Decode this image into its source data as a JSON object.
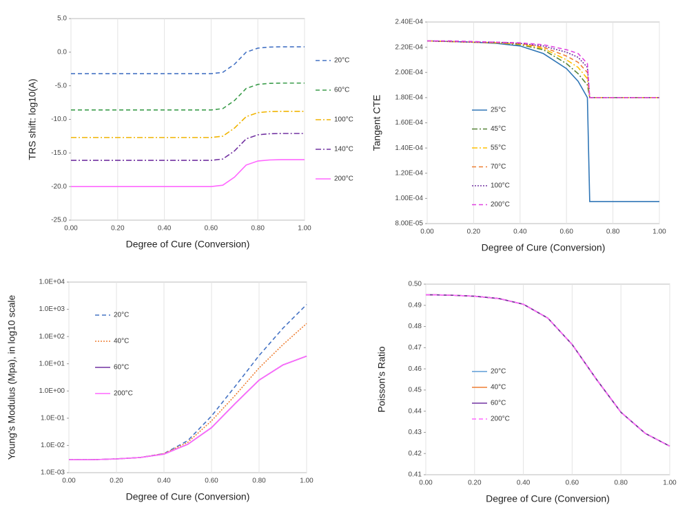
{
  "chart_data": [
    {
      "type": "line",
      "xlabel": "Degree of Cure (Conversion)",
      "ylabel": "TRS shift: log10(A)",
      "grid": "x",
      "legend": "right",
      "x": [
        0,
        0.05,
        0.1,
        0.15,
        0.2,
        0.25,
        0.3,
        0.35,
        0.4,
        0.45,
        0.5,
        0.55,
        0.6,
        0.65,
        0.7,
        0.75,
        0.8,
        0.85,
        0.9,
        0.95,
        1.0
      ],
      "xlim": [
        0,
        1
      ],
      "xticks": [
        {
          "value": 0,
          "label": "0.00"
        },
        {
          "value": 0.2,
          "label": "0.20"
        },
        {
          "value": 0.4,
          "label": "0.40"
        },
        {
          "value": 0.6,
          "label": "0.60"
        },
        {
          "value": 0.8,
          "label": "0.80"
        },
        {
          "value": 1,
          "label": "1.00"
        }
      ],
      "ylim": [
        -25,
        5
      ],
      "yticks": [
        {
          "value": 5,
          "label": "5.0"
        },
        {
          "value": 0,
          "label": "0.0"
        },
        {
          "value": -5,
          "label": "-5.0"
        },
        {
          "value": -10,
          "label": "-10.0"
        },
        {
          "value": -15,
          "label": "-15.0"
        },
        {
          "value": -20,
          "label": "-20.0"
        },
        {
          "value": -25,
          "label": "-25.0"
        }
      ],
      "series": [
        {
          "name": "20°C",
          "color": "#4472c4",
          "style": "dashed",
          "values": [
            -3.2,
            -3.2,
            -3.2,
            -3.2,
            -3.2,
            -3.2,
            -3.2,
            -3.2,
            -3.2,
            -3.2,
            -3.2,
            -3.2,
            -3.2,
            -3.0,
            -1.8,
            0.0,
            0.6,
            0.76,
            0.8,
            0.8,
            0.8
          ]
        },
        {
          "name": "60°C",
          "color": "#3a9c4a",
          "style": "dashed",
          "values": [
            -8.6,
            -8.6,
            -8.6,
            -8.6,
            -8.6,
            -8.6,
            -8.6,
            -8.6,
            -8.6,
            -8.6,
            -8.6,
            -8.6,
            -8.6,
            -8.4,
            -7.2,
            -5.4,
            -4.8,
            -4.64,
            -4.6,
            -4.6,
            -4.6
          ]
        },
        {
          "name": "100°C",
          "color": "#f0b400",
          "style": "dashdot",
          "values": [
            -12.7,
            -12.7,
            -12.7,
            -12.7,
            -12.7,
            -12.7,
            -12.7,
            -12.7,
            -12.7,
            -12.7,
            -12.7,
            -12.7,
            -12.7,
            -12.5,
            -11.3,
            -9.6,
            -9.0,
            -8.84,
            -8.8,
            -8.8,
            -8.8
          ]
        },
        {
          "name": "140°C",
          "color": "#7030a0",
          "style": "dashdot",
          "values": [
            -16.1,
            -16.1,
            -16.1,
            -16.1,
            -16.1,
            -16.1,
            -16.1,
            -16.1,
            -16.1,
            -16.1,
            -16.1,
            -16.1,
            -16.1,
            -15.9,
            -14.7,
            -12.9,
            -12.3,
            -12.14,
            -12.1,
            -12.1,
            -12.1
          ]
        },
        {
          "name": "200°C",
          "color": "#ff66ff",
          "style": "solid",
          "values": [
            -20.0,
            -20.0,
            -20.0,
            -20.0,
            -20.0,
            -20.0,
            -20.0,
            -20.0,
            -20.0,
            -20.0,
            -20.0,
            -20.0,
            -20.0,
            -19.8,
            -18.6,
            -16.8,
            -16.2,
            -16.04,
            -16.0,
            -16.0,
            -16.0
          ]
        }
      ]
    },
    {
      "type": "line",
      "xlabel": "Degree of Cure (Conversion)",
      "ylabel": "Tangent CTE",
      "grid": "x",
      "legend": "left",
      "x": [
        0,
        0.1,
        0.2,
        0.3,
        0.4,
        0.5,
        0.6,
        0.65,
        0.69,
        0.7,
        0.8,
        0.9,
        1.0
      ],
      "xlim": [
        0,
        1
      ],
      "xticks": [
        {
          "value": 0,
          "label": "0.00"
        },
        {
          "value": 0.2,
          "label": "0.20"
        },
        {
          "value": 0.4,
          "label": "0.40"
        },
        {
          "value": 0.6,
          "label": "0.60"
        },
        {
          "value": 0.8,
          "label": "0.80"
        },
        {
          "value": 1,
          "label": "1.00"
        }
      ],
      "ylim": [
        8e-05,
        0.00024
      ],
      "yticks": [
        {
          "value": 8e-05,
          "label": "8.00E-05"
        },
        {
          "value": 0.0001,
          "label": "1.00E-04"
        },
        {
          "value": 0.00012,
          "label": "1.20E-04"
        },
        {
          "value": 0.00014,
          "label": "1.40E-04"
        },
        {
          "value": 0.00016,
          "label": "1.60E-04"
        },
        {
          "value": 0.00018,
          "label": "1.80E-04"
        },
        {
          "value": 0.0002,
          "label": "2.00E-04"
        },
        {
          "value": 0.00022,
          "label": "2.20E-04"
        },
        {
          "value": 0.00024,
          "label": "2.40E-04"
        }
      ],
      "series": [
        {
          "name": "25°C",
          "color": "#2e75b6",
          "style": "solid",
          "values": [
            0.000225,
            0.0002245,
            0.000224,
            0.000223,
            0.000221,
            0.000215,
            0.000203,
            0.000193,
            0.00018,
            9.75e-05,
            9.75e-05,
            9.75e-05,
            9.75e-05
          ]
        },
        {
          "name": "45°C",
          "color": "#548235",
          "style": "dashdot",
          "values": [
            0.000225,
            0.0002245,
            0.000224,
            0.0002235,
            0.000222,
            0.000218,
            0.000207,
            0.000199,
            0.00019,
            0.00018,
            0.00018,
            0.00018,
            0.00018
          ]
        },
        {
          "name": "55°C",
          "color": "#ffc000",
          "style": "dashdot",
          "values": [
            0.000225,
            0.0002245,
            0.000224,
            0.0002235,
            0.0002225,
            0.000219,
            0.00021,
            0.000204,
            0.000195,
            0.00018,
            0.00018,
            0.00018,
            0.00018
          ]
        },
        {
          "name": "70°C",
          "color": "#ed7d31",
          "style": "dashed",
          "values": [
            0.000225,
            0.0002245,
            0.000224,
            0.0002235,
            0.000223,
            0.00022,
            0.000213,
            0.000208,
            0.0002,
            0.00018,
            0.00018,
            0.00018,
            0.00018
          ]
        },
        {
          "name": "100°C",
          "color": "#7030a0",
          "style": "dotted",
          "values": [
            0.000225,
            0.0002245,
            0.000224,
            0.000224,
            0.000223,
            0.000221,
            0.000216,
            0.000212,
            0.000204,
            0.00018,
            0.00018,
            0.00018,
            0.00018
          ]
        },
        {
          "name": "200°C",
          "color": "#e040e0",
          "style": "dashed",
          "values": [
            0.000225,
            0.000225,
            0.0002245,
            0.000224,
            0.0002235,
            0.000222,
            0.000218,
            0.000215,
            0.000207,
            0.00018,
            0.00018,
            0.00018,
            0.00018
          ]
        }
      ]
    },
    {
      "type": "line",
      "xlabel": "Degree of Cure (Conversion)",
      "ylabel": "Young's Modulus (Mpa), in log10 scale",
      "grid": "x",
      "legend": "left",
      "yscale": "log",
      "x": [
        0,
        0.1,
        0.2,
        0.3,
        0.4,
        0.5,
        0.6,
        0.7,
        0.8,
        0.9,
        1.0
      ],
      "xlim": [
        0,
        1
      ],
      "xticks": [
        {
          "value": 0,
          "label": "0.00"
        },
        {
          "value": 0.2,
          "label": "0.20"
        },
        {
          "value": 0.4,
          "label": "0.40"
        },
        {
          "value": 0.6,
          "label": "0.60"
        },
        {
          "value": 0.8,
          "label": "0.80"
        },
        {
          "value": 1,
          "label": "1.00"
        }
      ],
      "ylim": [
        0.001,
        10000
      ],
      "yticks": [
        {
          "value": 0.001,
          "label": "1.0E-03"
        },
        {
          "value": 0.01,
          "label": "1.0E-02"
        },
        {
          "value": 0.1,
          "label": "1.0E-01"
        },
        {
          "value": 1,
          "label": "1.0E+00"
        },
        {
          "value": 10,
          "label": "1.0E+01"
        },
        {
          "value": 100,
          "label": "1.0E+02"
        },
        {
          "value": 1000,
          "label": "1.0E+03"
        },
        {
          "value": 10000,
          "label": "1.0E+04"
        }
      ],
      "series": [
        {
          "name": "20°C",
          "color": "#4472c4",
          "style": "dashed",
          "values": [
            0.003,
            0.003,
            0.0032,
            0.0036,
            0.005,
            0.015,
            0.12,
            1.5,
            20,
            200,
            1500
          ]
        },
        {
          "name": "40°C",
          "color": "#ed7d31",
          "style": "dotted",
          "values": [
            0.003,
            0.003,
            0.0032,
            0.0036,
            0.005,
            0.013,
            0.08,
            0.7,
            7,
            50,
            300
          ]
        },
        {
          "name": "60°C",
          "color": "#7030a0",
          "style": "solid",
          "values": [
            0.003,
            0.003,
            0.0032,
            0.0036,
            0.0048,
            0.011,
            0.045,
            0.35,
            2.5,
            9,
            19
          ]
        },
        {
          "name": "200°C",
          "color": "#ff66ff",
          "style": "solid",
          "values": [
            0.003,
            0.003,
            0.0032,
            0.0036,
            0.0048,
            0.011,
            0.045,
            0.35,
            2.5,
            9,
            19
          ]
        }
      ]
    },
    {
      "type": "line",
      "xlabel": "Degree of Cure (Conversion)",
      "ylabel": "Poisson's Ratio",
      "grid": "x",
      "legend": "left",
      "x": [
        0,
        0.1,
        0.2,
        0.3,
        0.4,
        0.5,
        0.6,
        0.7,
        0.8,
        0.9,
        1.0
      ],
      "xlim": [
        0,
        1
      ],
      "xticks": [
        {
          "value": 0,
          "label": "0.00"
        },
        {
          "value": 0.2,
          "label": "0.20"
        },
        {
          "value": 0.4,
          "label": "0.40"
        },
        {
          "value": 0.6,
          "label": "0.60"
        },
        {
          "value": 0.8,
          "label": "0.80"
        },
        {
          "value": 1,
          "label": "1.00"
        }
      ],
      "ylim": [
        0.41,
        0.5
      ],
      "yticks": [
        0.41,
        0.42,
        0.43,
        0.44,
        0.45,
        0.46,
        0.47,
        0.48,
        0.49,
        {
          "value": 0.5,
          "label": "0.50"
        }
      ],
      "series": [
        {
          "name": "20°C",
          "color": "#5b9bd5",
          "style": "solid",
          "values": [
            0.495,
            0.4948,
            0.4943,
            0.4932,
            0.4905,
            0.484,
            0.4715,
            0.455,
            0.4395,
            0.4295,
            0.4235
          ]
        },
        {
          "name": "40°C",
          "color": "#ed7d31",
          "style": "solid",
          "values": [
            0.495,
            0.4948,
            0.4943,
            0.4932,
            0.4905,
            0.484,
            0.4715,
            0.455,
            0.4395,
            0.4295,
            0.4235
          ]
        },
        {
          "name": "60°C",
          "color": "#7030a0",
          "style": "solid",
          "values": [
            0.495,
            0.4948,
            0.4943,
            0.4932,
            0.4905,
            0.484,
            0.4715,
            0.455,
            0.4395,
            0.4295,
            0.4235
          ]
        },
        {
          "name": "200°C",
          "color": "#ff66ff",
          "style": "dashed",
          "values": [
            0.495,
            0.4948,
            0.4943,
            0.4932,
            0.4905,
            0.484,
            0.4715,
            0.455,
            0.4395,
            0.4295,
            0.4235
          ]
        }
      ]
    }
  ]
}
